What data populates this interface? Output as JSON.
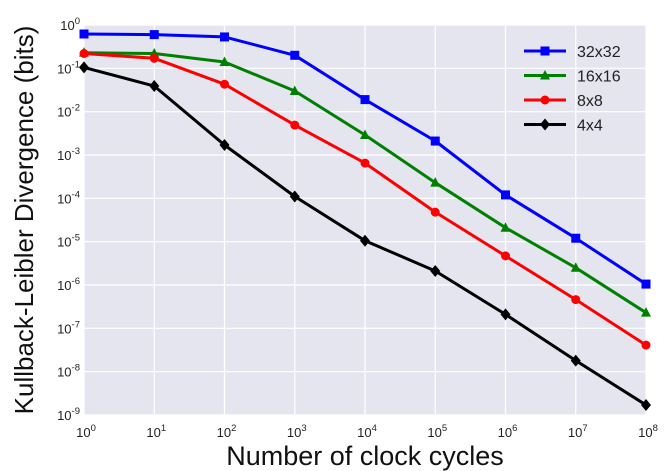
{
  "chart_data": {
    "type": "line",
    "xlabel": "Number of clock cycles",
    "ylabel": "Kullback-Leibler Divergence (bits)",
    "xscale": "log",
    "yscale": "log",
    "xlim": [
      1,
      100000000
    ],
    "ylim": [
      1e-09,
      1
    ],
    "grid": true,
    "legend_position": "top-right",
    "x": [
      1,
      10,
      100,
      1000,
      10000,
      100000,
      1000000,
      10000000,
      100000000
    ],
    "x_tick_labels": [
      {
        "base": "10",
        "exp": "0"
      },
      {
        "base": "10",
        "exp": "1"
      },
      {
        "base": "10",
        "exp": "2"
      },
      {
        "base": "10",
        "exp": "3"
      },
      {
        "base": "10",
        "exp": "4"
      },
      {
        "base": "10",
        "exp": "5"
      },
      {
        "base": "10",
        "exp": "6"
      },
      {
        "base": "10",
        "exp": "7"
      },
      {
        "base": "10",
        "exp": "8"
      }
    ],
    "y_tick_values": [
      1,
      0.1,
      0.01,
      0.001,
      0.0001,
      1e-05,
      1e-06,
      1e-07,
      1e-08,
      1e-09
    ],
    "y_tick_labels": [
      {
        "base": "10",
        "exp": "0"
      },
      {
        "base": "10",
        "exp": "-1"
      },
      {
        "base": "10",
        "exp": "-2"
      },
      {
        "base": "10",
        "exp": "-3"
      },
      {
        "base": "10",
        "exp": "-4"
      },
      {
        "base": "10",
        "exp": "-5"
      },
      {
        "base": "10",
        "exp": "-6"
      },
      {
        "base": "10",
        "exp": "-7"
      },
      {
        "base": "10",
        "exp": "-8"
      },
      {
        "base": "10",
        "exp": "-9"
      }
    ],
    "series": [
      {
        "name": "32x32",
        "color": "#0000ff",
        "marker": "square",
        "values": [
          0.62,
          0.6,
          0.53,
          0.2,
          0.019,
          0.0021,
          0.00012,
          1.2e-05,
          1.05e-06
        ]
      },
      {
        "name": "16x16",
        "color": "#008000",
        "marker": "triangle",
        "values": [
          0.23,
          0.22,
          0.14,
          0.03,
          0.0029,
          0.00023,
          2.1e-05,
          2.5e-06,
          2.3e-07
        ]
      },
      {
        "name": "8x8",
        "color": "#ff0000",
        "marker": "circle",
        "values": [
          0.22,
          0.17,
          0.043,
          0.0049,
          0.00065,
          4.8e-05,
          4.7e-06,
          4.6e-07,
          4.1e-08
        ]
      },
      {
        "name": "4x4",
        "color": "#000000",
        "marker": "diamond",
        "values": [
          0.105,
          0.039,
          0.0017,
          0.00011,
          1.05e-05,
          2.1e-06,
          2.1e-07,
          1.8e-08,
          1.7e-09
        ]
      }
    ]
  }
}
